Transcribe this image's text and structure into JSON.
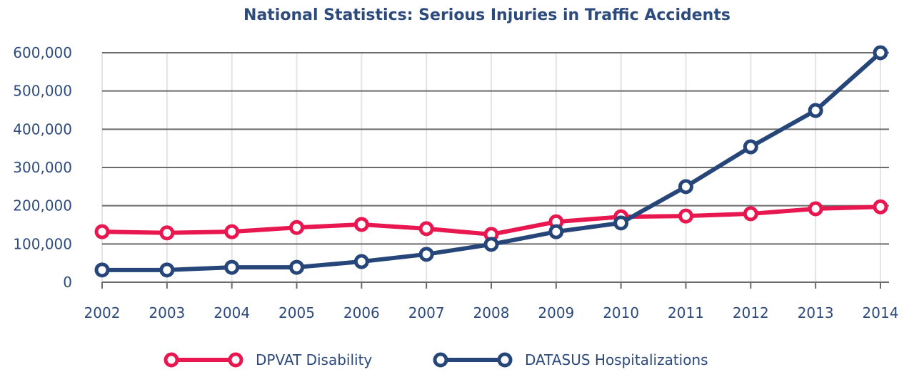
{
  "chart_data": {
    "type": "line",
    "title": "National Statistics: Serious Injuries in Traffic Accidents",
    "xlabel": "",
    "ylabel": "",
    "x": [
      "2002",
      "2003",
      "2004",
      "2005",
      "2006",
      "2007",
      "2008",
      "2009",
      "2010",
      "2011",
      "2012",
      "2013",
      "2014"
    ],
    "ylim": [
      0,
      600000
    ],
    "yticks": [
      0,
      100000,
      200000,
      300000,
      400000,
      500000,
      600000
    ],
    "ytick_labels": [
      "0",
      "100,000",
      "200,000",
      "300,000",
      "400,000",
      "500,000",
      "600,000"
    ],
    "grid": true,
    "legend_position": "bottom",
    "series": [
      {
        "name": "DPVAT Disability",
        "color": "#e8174f",
        "values": [
          132000,
          129000,
          132000,
          143000,
          151000,
          140000,
          125000,
          158000,
          171000,
          173000,
          179000,
          192000,
          197000
        ]
      },
      {
        "name": "DATASUS Hospitalizations",
        "color": "#26467a",
        "values": [
          32000,
          32000,
          39000,
          39000,
          54000,
          73000,
          99000,
          132000,
          155000,
          250000,
          354000,
          449000,
          600000
        ]
      }
    ]
  }
}
